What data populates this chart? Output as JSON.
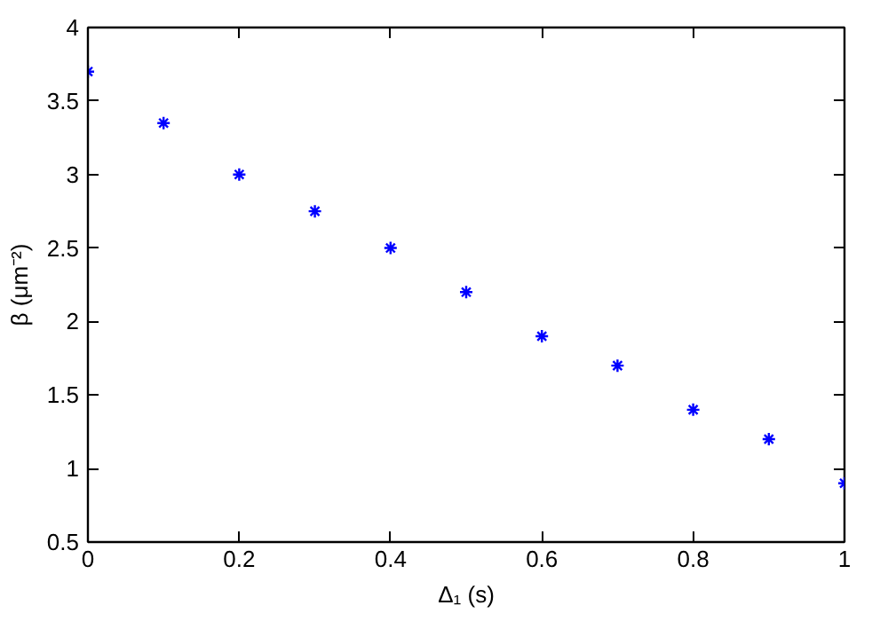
{
  "chart_data": {
    "type": "scatter",
    "xlabel": "Δ₁ (s)",
    "ylabel": "β (μm⁻²)",
    "x": [
      0,
      0.1,
      0.2,
      0.3,
      0.4,
      0.5,
      0.6,
      0.7,
      0.8,
      0.9,
      1.0
    ],
    "series": [
      {
        "color": "#0000ff",
        "values": [
          3.7,
          3.35,
          3.0,
          2.75,
          2.5,
          2.2,
          1.9,
          1.7,
          1.4,
          1.2,
          0.9
        ]
      }
    ],
    "marker": "cross",
    "xlim": [
      0,
      1
    ],
    "xticks": [
      0,
      0.2,
      0.4,
      0.6,
      0.8,
      1
    ],
    "ylim": [
      0.5,
      4
    ],
    "yticks": [
      0.5,
      1,
      1.5,
      2,
      2.5,
      3,
      3.5,
      4
    ],
    "grid": false
  }
}
